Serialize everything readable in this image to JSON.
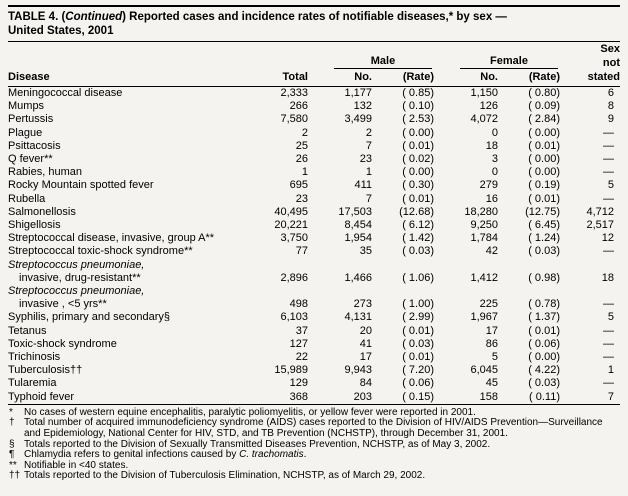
{
  "title": {
    "line1_prefix": "TABLE 4. (",
    "line1_continued": "Continued",
    "line1_rest": ") Reported cases and incidence rates of notifiable diseases,* by sex —",
    "line2": "United States, 2001"
  },
  "table": {
    "headers": {
      "disease": "Disease",
      "total": "Total",
      "male": "Male",
      "female": "Female",
      "no_label": "No.",
      "rate_label": "(Rate)",
      "sex_line1": "Sex",
      "sex_line2": "not",
      "sex_line3": "stated"
    },
    "rows": [
      {
        "name": "Meningococcal disease",
        "total": "2,333",
        "male_no": "1,177",
        "male_rate": "( 0.85)",
        "female_no": "1,150",
        "female_rate": "( 0.80)",
        "sex_not_stated": "6"
      },
      {
        "name": "Mumps",
        "total": "266",
        "male_no": "132",
        "male_rate": "( 0.10)",
        "female_no": "126",
        "female_rate": "( 0.09)",
        "sex_not_stated": "8"
      },
      {
        "name": "Pertussis",
        "total": "7,580",
        "male_no": "3,499",
        "male_rate": "( 2.53)",
        "female_no": "4,072",
        "female_rate": "( 2.84)",
        "sex_not_stated": "9"
      },
      {
        "name": "Plague",
        "total": "2",
        "male_no": "2",
        "male_rate": "( 0.00)",
        "female_no": "0",
        "female_rate": "( 0.00)",
        "sex_not_stated": "—"
      },
      {
        "name": "Psittacosis",
        "total": "25",
        "male_no": "7",
        "male_rate": "( 0.01)",
        "female_no": "18",
        "female_rate": "( 0.01)",
        "sex_not_stated": "—"
      },
      {
        "name": "Q fever**",
        "total": "26",
        "male_no": "23",
        "male_rate": "( 0.02)",
        "female_no": "3",
        "female_rate": "( 0.00)",
        "sex_not_stated": "—"
      },
      {
        "name": "Rabies, human",
        "total": "1",
        "male_no": "1",
        "male_rate": "( 0.00)",
        "female_no": "0",
        "female_rate": "( 0.00)",
        "sex_not_stated": "—"
      },
      {
        "name": "Rocky Mountain spotted fever",
        "total": "695",
        "male_no": "411",
        "male_rate": "( 0.30)",
        "female_no": "279",
        "female_rate": "( 0.19)",
        "sex_not_stated": "5"
      },
      {
        "name": "Rubella",
        "total": "23",
        "male_no": "7",
        "male_rate": "( 0.01)",
        "female_no": "16",
        "female_rate": "( 0.01)",
        "sex_not_stated": "—"
      },
      {
        "name": "Salmonellosis",
        "total": "40,495",
        "male_no": "17,503",
        "male_rate": "(12.68)",
        "female_no": "18,280",
        "female_rate": "(12.75)",
        "sex_not_stated": "4,712"
      },
      {
        "name": "Shigellosis",
        "total": "20,221",
        "male_no": "8,454",
        "male_rate": "( 6.12)",
        "female_no": "9,250",
        "female_rate": "( 6.45)",
        "sex_not_stated": "2,517"
      },
      {
        "name": "Streptococcal disease, invasive, group A**",
        "total": "3,750",
        "male_no": "1,954",
        "male_rate": "( 1.42)",
        "female_no": "1,784",
        "female_rate": "( 1.24)",
        "sex_not_stated": "12"
      },
      {
        "name": "Streptococcal toxic-shock syndrome**",
        "total": "77",
        "male_no": "35",
        "male_rate": "( 0.03)",
        "female_no": "42",
        "female_rate": "( 0.03)",
        "sex_not_stated": "—"
      },
      {
        "name": "Streptococcus pneumoniae,",
        "italic": true
      },
      {
        "name": "invasive, drug-resistant**",
        "indent": true,
        "total": "2,896",
        "male_no": "1,466",
        "male_rate": "( 1.06)",
        "female_no": "1,412",
        "female_rate": "( 0.98)",
        "sex_not_stated": "18"
      },
      {
        "name": "Streptococcus pneumoniae,",
        "italic": true
      },
      {
        "name": "invasive , <5 yrs**",
        "indent": true,
        "total": "498",
        "male_no": "273",
        "male_rate": "( 1.00)",
        "female_no": "225",
        "female_rate": "( 0.78)",
        "sex_not_stated": "—"
      },
      {
        "name": "Syphilis, primary and secondary§",
        "total": "6,103",
        "male_no": "4,131",
        "male_rate": "( 2.99)",
        "female_no": "1,967",
        "female_rate": "( 1.37)",
        "sex_not_stated": "5"
      },
      {
        "name": "Tetanus",
        "total": "37",
        "male_no": "20",
        "male_rate": "( 0.01)",
        "female_no": "17",
        "female_rate": "( 0.01)",
        "sex_not_stated": "—"
      },
      {
        "name": "Toxic-shock syndrome",
        "total": "127",
        "male_no": "41",
        "male_rate": "( 0.03)",
        "female_no": "86",
        "female_rate": "( 0.06)",
        "sex_not_stated": "—"
      },
      {
        "name": "Trichinosis",
        "total": "22",
        "male_no": "17",
        "male_rate": "( 0.01)",
        "female_no": "5",
        "female_rate": "( 0.00)",
        "sex_not_stated": "—"
      },
      {
        "name": "Tuberculosis††",
        "total": "15,989",
        "male_no": "9,943",
        "male_rate": "( 7.20)",
        "female_no": "6,045",
        "female_rate": "( 4.22)",
        "sex_not_stated": "1"
      },
      {
        "name": "Tularemia",
        "total": "129",
        "male_no": "84",
        "male_rate": "( 0.06)",
        "female_no": "45",
        "female_rate": "( 0.03)",
        "sex_not_stated": "—"
      },
      {
        "name": "Typhoid fever",
        "total": "368",
        "male_no": "203",
        "male_rate": "( 0.15)",
        "female_no": "158",
        "female_rate": "( 0.11)",
        "sex_not_stated": "7"
      }
    ]
  },
  "footnotes": [
    {
      "symbol": "*",
      "text": "No cases of western equine encephalitis, paralytic poliomyelitis, or yellow fever were reported in 2001."
    },
    {
      "symbol": "†",
      "text": "Total number of acquired immunodeficiency syndrome (AIDS) cases reported to the Division of HIV/AIDS Prevention—Surveillance and Epidemiology, National Center for HIV, STD, and TB Prevention (NCHSTP), through December 31, 2001."
    },
    {
      "symbol": "§",
      "text": "Totals reported to the Division of Sexually Transmitted Diseases Prevention, NCHSTP, as of May 3, 2002."
    },
    {
      "symbol": "¶",
      "text": "Chlamydia refers to genital infections caused by ",
      "italic": "C. trachomatis",
      "suffix": "."
    },
    {
      "symbol": "**",
      "text": "Notifiable in <40 states."
    },
    {
      "symbol": "††",
      "text": "Totals reported to the Division of Tuberculosis Elimination, NCHSTP, as of March 29, 2002."
    }
  ]
}
